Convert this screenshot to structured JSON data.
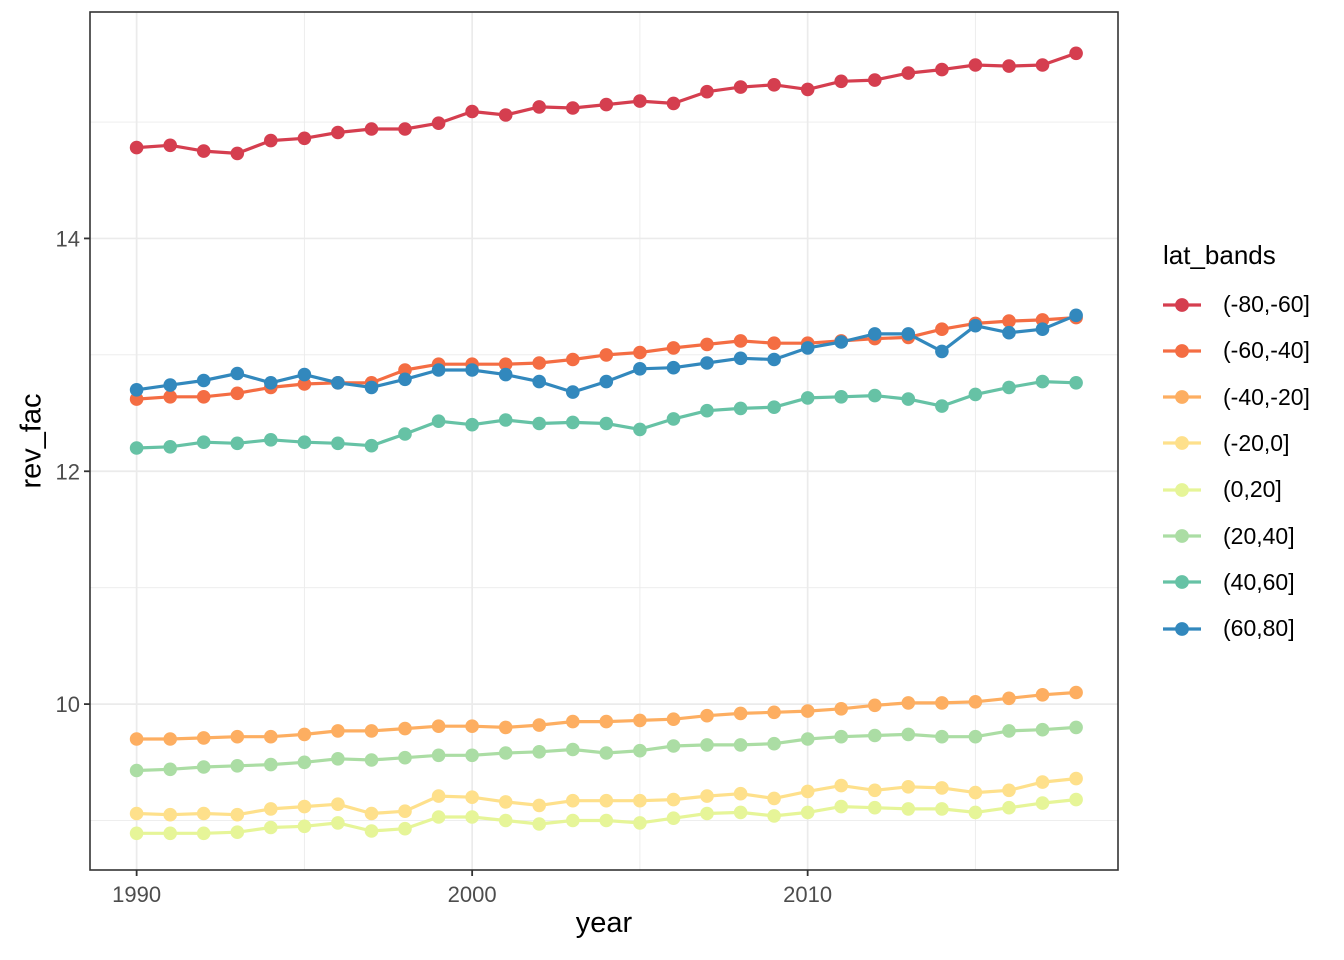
{
  "chart_data": {
    "type": "line",
    "title": "",
    "xlabel": "year",
    "ylabel": "rev_fac",
    "legend": {
      "title": "lat_bands",
      "position": "right"
    },
    "grid": "major+minor",
    "x_ticks": [
      1990,
      2000,
      2010
    ],
    "x_minor_ticks": [
      1995,
      2005,
      2015
    ],
    "y_ticks": [
      10,
      12,
      14
    ],
    "y_minor_ticks": [
      9,
      11,
      13,
      15
    ],
    "xlim": [
      1988.61,
      2019.25
    ],
    "ylim": [
      8.575,
      15.945
    ],
    "x": [
      1990,
      1991,
      1992,
      1993,
      1994,
      1995,
      1996,
      1997,
      1998,
      1999,
      2000,
      2001,
      2002,
      2003,
      2004,
      2005,
      2006,
      2007,
      2008,
      2009,
      2010,
      2011,
      2012,
      2013,
      2014,
      2015,
      2016,
      2017,
      2018
    ],
    "series": [
      {
        "name": "(-80,-60]",
        "color": "#d53e4f",
        "values": [
          14.78,
          14.8,
          14.75,
          14.73,
          14.84,
          14.86,
          14.91,
          14.94,
          14.94,
          14.99,
          15.09,
          15.06,
          15.13,
          15.12,
          15.15,
          15.18,
          15.16,
          15.26,
          15.3,
          15.32,
          15.28,
          15.35,
          15.36,
          15.42,
          15.45,
          15.49,
          15.48,
          15.49,
          15.59
        ]
      },
      {
        "name": "(-60,-40]",
        "color": "#f46d43",
        "values": [
          12.62,
          12.64,
          12.64,
          12.67,
          12.72,
          12.75,
          12.76,
          12.76,
          12.87,
          12.92,
          12.92,
          12.92,
          12.93,
          12.96,
          13.0,
          13.02,
          13.06,
          13.09,
          13.12,
          13.1,
          13.1,
          13.12,
          13.14,
          13.15,
          13.22,
          13.27,
          13.29,
          13.3,
          13.32
        ]
      },
      {
        "name": "(-40,-20]",
        "color": "#fdae61",
        "values": [
          9.7,
          9.7,
          9.71,
          9.72,
          9.72,
          9.74,
          9.77,
          9.77,
          9.79,
          9.81,
          9.81,
          9.8,
          9.82,
          9.85,
          9.85,
          9.86,
          9.87,
          9.9,
          9.92,
          9.93,
          9.94,
          9.96,
          9.99,
          10.01,
          10.01,
          10.02,
          10.05,
          10.08,
          10.1
        ]
      },
      {
        "name": "(-20,0]",
        "color": "#fee08b",
        "values": [
          9.06,
          9.05,
          9.06,
          9.05,
          9.1,
          9.12,
          9.14,
          9.06,
          9.08,
          9.21,
          9.2,
          9.16,
          9.13,
          9.17,
          9.17,
          9.17,
          9.18,
          9.21,
          9.23,
          9.19,
          9.25,
          9.3,
          9.26,
          9.29,
          9.28,
          9.24,
          9.26,
          9.33,
          9.36
        ]
      },
      {
        "name": "(0,20]",
        "color": "#e6f598",
        "values": [
          8.89,
          8.89,
          8.89,
          8.9,
          8.94,
          8.95,
          8.98,
          8.91,
          8.93,
          9.03,
          9.03,
          9.0,
          8.97,
          9.0,
          9.0,
          8.98,
          9.02,
          9.06,
          9.07,
          9.04,
          9.07,
          9.12,
          9.11,
          9.1,
          9.1,
          9.07,
          9.11,
          9.15,
          9.18
        ]
      },
      {
        "name": "(20,40]",
        "color": "#abdda4",
        "values": [
          9.43,
          9.44,
          9.46,
          9.47,
          9.48,
          9.5,
          9.53,
          9.52,
          9.54,
          9.56,
          9.56,
          9.58,
          9.59,
          9.61,
          9.58,
          9.6,
          9.64,
          9.65,
          9.65,
          9.66,
          9.7,
          9.72,
          9.73,
          9.74,
          9.72,
          9.72,
          9.77,
          9.78,
          9.8
        ]
      },
      {
        "name": "(40,60]",
        "color": "#66c2a5",
        "values": [
          12.2,
          12.21,
          12.25,
          12.24,
          12.27,
          12.25,
          12.24,
          12.22,
          12.32,
          12.43,
          12.4,
          12.44,
          12.41,
          12.42,
          12.41,
          12.36,
          12.45,
          12.52,
          12.54,
          12.55,
          12.63,
          12.64,
          12.65,
          12.62,
          12.56,
          12.66,
          12.72,
          12.77,
          12.76
        ]
      },
      {
        "name": "(60,80]",
        "color": "#3288bd",
        "values": [
          12.7,
          12.74,
          12.78,
          12.84,
          12.76,
          12.83,
          12.76,
          12.72,
          12.79,
          12.87,
          12.87,
          12.83,
          12.77,
          12.68,
          12.77,
          12.88,
          12.89,
          12.93,
          12.97,
          12.96,
          13.06,
          13.11,
          13.18,
          13.18,
          13.03,
          13.25,
          13.19,
          13.22,
          13.34
        ]
      }
    ],
    "theme": {
      "panel_background": "#ffffff",
      "panel_border": "#333333",
      "grid_color": "#ebebeb",
      "tick_color": "#333333",
      "tick_label_color": "#4d4d4d",
      "axis_title_color": "#000000",
      "line_width": 3.2,
      "point_radius": 6.8
    }
  }
}
